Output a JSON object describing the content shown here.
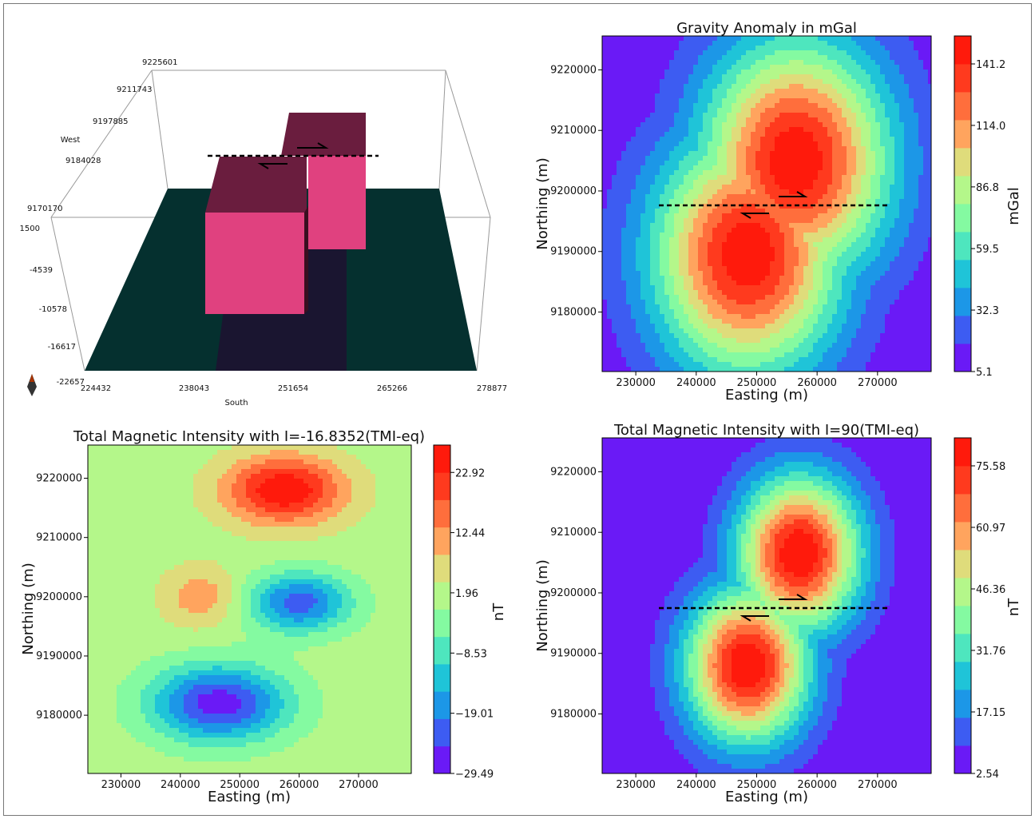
{
  "panels": {
    "block_3d": {
      "y_axis_ticks": [
        "9225601",
        "9211743",
        "9197885",
        "9184028",
        "9170170"
      ],
      "y_axis_label": "West",
      "z_axis_ticks": [
        "1500",
        "-4539",
        "-10578",
        "-16617",
        "-22657"
      ],
      "x_axis_ticks": [
        "224432",
        "238043",
        "251654",
        "265266",
        "278877"
      ],
      "x_axis_label": "South",
      "colors": {
        "floor": "#05302F",
        "shadow": "#1A1530",
        "block_face": "#E0417F",
        "block_top": "#6A1D3E"
      }
    },
    "gravity": {
      "title": "Gravity Anomaly in mGal",
      "xlabel": "Easting (m)",
      "ylabel": "Northing (m)",
      "x_ticks": [
        "230000",
        "240000",
        "250000",
        "260000",
        "270000"
      ],
      "y_ticks": [
        "9220000",
        "9210000",
        "9200000",
        "9190000",
        "9180000"
      ],
      "colorbar_ticks": [
        "141.2",
        "114.0",
        "86.8",
        "59.5",
        "32.3",
        "5.1"
      ],
      "colorbar_label": "mGal"
    },
    "tmi_incl": {
      "title": "Total Magnetic Intensity with I=-16.8352(TMI-eq)",
      "xlabel": "Easting (m)",
      "ylabel": "Northing (m)",
      "x_ticks": [
        "230000",
        "240000",
        "250000",
        "260000",
        "270000"
      ],
      "y_ticks": [
        "9220000",
        "9210000",
        "9200000",
        "9190000",
        "9180000"
      ],
      "colorbar_ticks": [
        "22.92",
        "12.44",
        "1.96",
        "−8.53",
        "−19.01",
        "−29.49"
      ],
      "colorbar_label": "nT"
    },
    "tmi_90": {
      "title": "Total Magnetic Intensity with I=90(TMI-eq)",
      "xlabel": "Easting (m)",
      "ylabel": "Northing (m)",
      "x_ticks": [
        "230000",
        "240000",
        "250000",
        "260000",
        "270000"
      ],
      "y_ticks": [
        "9220000",
        "9210000",
        "9200000",
        "9190000",
        "9180000"
      ],
      "colorbar_ticks": [
        "75.58",
        "60.97",
        "46.36",
        "31.76",
        "17.15",
        "2.54"
      ],
      "colorbar_label": "nT"
    }
  },
  "chart_data": [
    {
      "type": "heatmap",
      "title": "Gravity Anomaly in mGal",
      "xlabel": "Easting (m)",
      "ylabel": "Northing (m)",
      "xlim": [
        224432,
        278877
      ],
      "ylim": [
        9170170,
        9225601
      ],
      "colorbar": {
        "label": "mGal",
        "ticks": [
          141.2,
          114.0,
          86.8,
          59.5,
          32.3,
          5.1
        ]
      },
      "sources": [
        {
          "x": 248500,
          "y": 9189500,
          "peak": 148,
          "sx": 11000,
          "sy": 14000
        },
        {
          "x": 256500,
          "y": 9205000,
          "peak": 148,
          "sx": 11000,
          "sy": 14000
        }
      ],
      "profile_northing": 9197500
    },
    {
      "type": "heatmap",
      "title": "Total Magnetic Intensity with I=-16.8352(TMI-eq)",
      "xlabel": "Easting (m)",
      "ylabel": "Northing (m)",
      "xlim": [
        224432,
        278877
      ],
      "ylim": [
        9170170,
        9225601
      ],
      "colorbar": {
        "label": "nT",
        "ticks": [
          22.92,
          12.44,
          1.96,
          -8.53,
          -19.01,
          -29.49
        ]
      },
      "anomalies": [
        {
          "x": 257500,
          "y": 9218000,
          "amp": 30,
          "sx": 7000,
          "sy": 4000
        },
        {
          "x": 246500,
          "y": 9182000,
          "amp": -34,
          "sx": 8000,
          "sy": 4500
        },
        {
          "x": 260000,
          "y": 9199000,
          "amp": -28,
          "sx": 6000,
          "sy": 3500
        },
        {
          "x": 243500,
          "y": 9200000,
          "amp": 12,
          "sx": 4500,
          "sy": 3500
        }
      ]
    },
    {
      "type": "heatmap",
      "title": "Total Magnetic Intensity with I=90(TMI-eq)",
      "xlabel": "Easting (m)",
      "ylabel": "Northing (m)",
      "xlim": [
        224432,
        278877
      ],
      "ylim": [
        9170170,
        9225601
      ],
      "colorbar": {
        "label": "nT",
        "ticks": [
          75.58,
          60.97,
          46.36,
          31.76,
          17.15,
          2.54
        ]
      },
      "sources": [
        {
          "x": 248500,
          "y": 9188000,
          "peak": 82,
          "sx": 7200,
          "sy": 9000
        },
        {
          "x": 257000,
          "y": 9206500,
          "peak": 82,
          "sx": 7200,
          "sy": 9000
        }
      ],
      "profile_northing": 9197500
    }
  ]
}
